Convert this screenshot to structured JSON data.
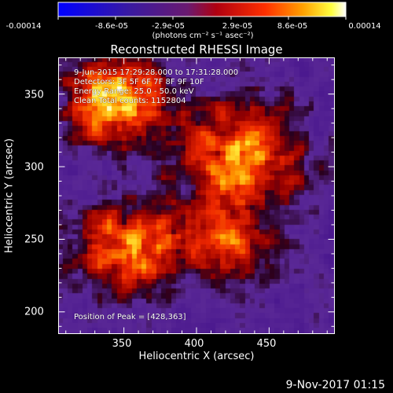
{
  "colorbar": {
    "tick_labels": [
      "-0.00014",
      "-8.6e-05",
      "-2.9e-05",
      "2.9e-05",
      "8.6e-05",
      "0.00014"
    ],
    "units_label": "(photons cm⁻² s⁻¹ asec⁻²)"
  },
  "chart_data": {
    "type": "heatmap",
    "title": "Reconstructed RHESSI Image",
    "xlabel": "Heliocentric X (arcsec)",
    "ylabel": "Heliocentric Y (arcsec)",
    "xlim": [
      305,
      495
    ],
    "ylim": [
      185,
      375
    ],
    "xticks": [
      350,
      400,
      450
    ],
    "yticks": [
      200,
      250,
      300,
      350
    ],
    "colorbar_range": [
      -0.00014,
      0.00014
    ],
    "colormap": "blue-purple-red-orange-yellow-white",
    "peak": [
      428,
      363
    ],
    "annotations": [
      "9-Jun-2015 17:29:28.000 to 17:31:28.000",
      "Detectors: 3F 5F 6F 7F 8F 9F 10F",
      "Energy Range: 25.0 - 50.0 keV",
      "Clean   Total counts: 1152804"
    ],
    "peak_label": "Position of Peak = [428,363]"
  },
  "footer": {
    "date": "9-Nov-2017 01:15"
  }
}
